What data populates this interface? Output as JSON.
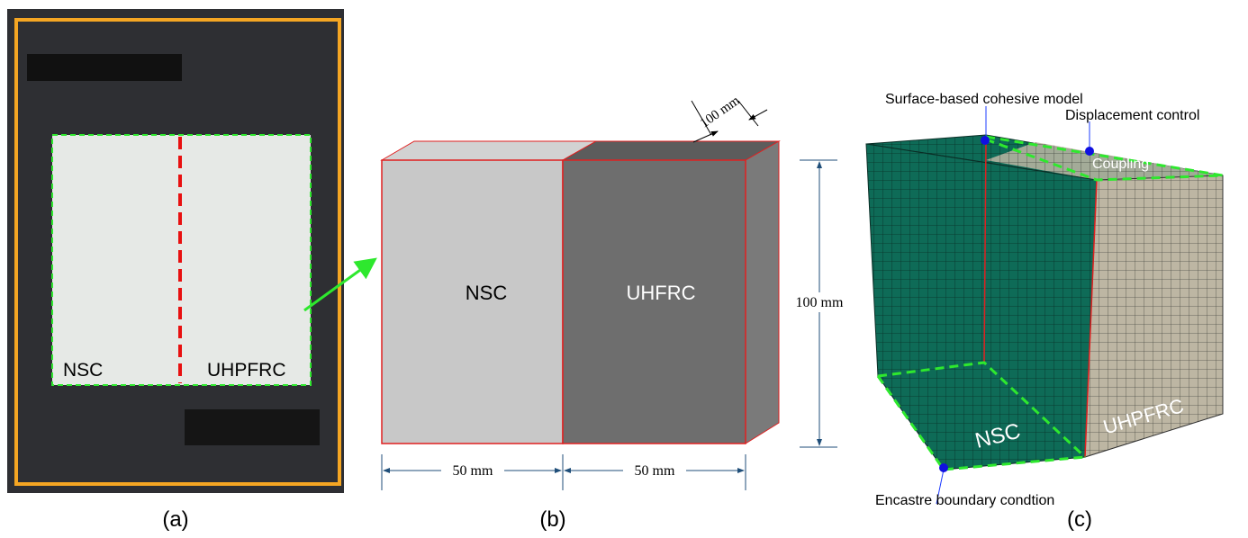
{
  "panels": [
    {
      "caption": "(a)",
      "labels": [
        "NSC",
        "UHPFRC"
      ]
    },
    {
      "caption": "(b)",
      "labels": [
        "NSC",
        "UHFRC"
      ],
      "dimensions": [
        "100 mm",
        "100 mm",
        "50 mm",
        "50 mm"
      ]
    },
    {
      "caption": "(c)",
      "annotations": [
        "Surface-based cohesive model",
        "Displacement control",
        "Coupling",
        "Encastre boundary condtion"
      ],
      "labels": [
        "NSC",
        "UHPFRC"
      ]
    }
  ]
}
